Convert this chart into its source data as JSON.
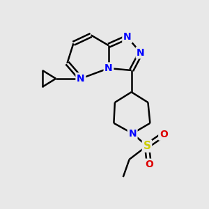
{
  "background_color": "#e8e8e8",
  "bond_color": "#000000",
  "nitrogen_color": "#0000ff",
  "sulfur_color": "#cccc00",
  "oxygen_color": "#dd0000",
  "figsize": [
    3.0,
    3.0
  ],
  "dpi": 100,
  "bond_width": 1.8,
  "xlim": [
    0,
    10
  ],
  "ylim": [
    0,
    10
  ]
}
